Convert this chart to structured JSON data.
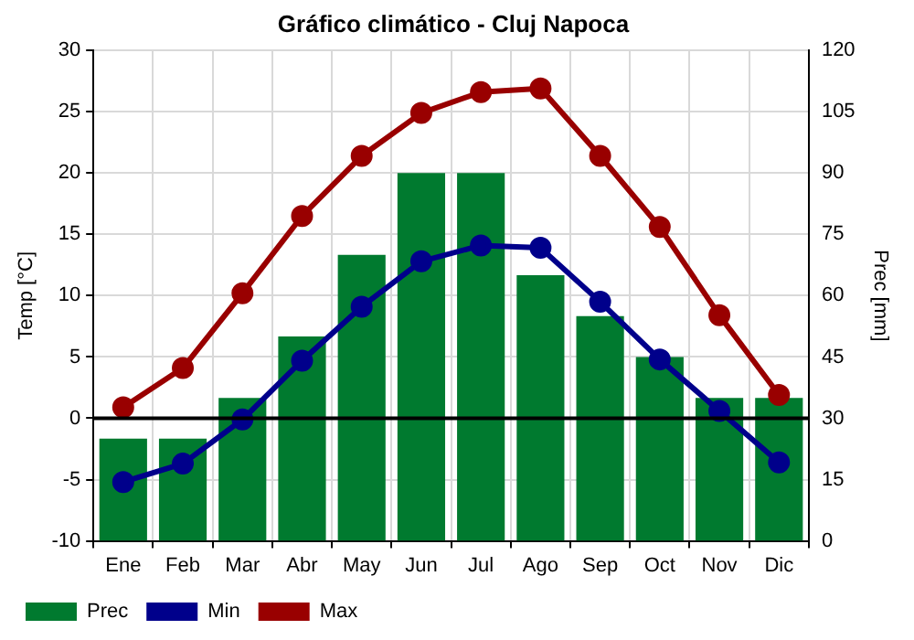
{
  "chart_data": {
    "type": "bar",
    "title": "Gráfico climático - Cluj Napoca",
    "categories": [
      "Ene",
      "Feb",
      "Mar",
      "Abr",
      "May",
      "Jun",
      "Jul",
      "Ago",
      "Sep",
      "Oct",
      "Nov",
      "Dic"
    ],
    "series": [
      {
        "name": "Prec",
        "axis": "y2",
        "color": "#007a2f",
        "values": [
          25,
          25,
          35,
          50,
          70,
          90,
          90,
          65,
          55,
          45,
          35,
          35
        ]
      },
      {
        "name": "Min",
        "type": "line",
        "color": "#00008b",
        "values": [
          -5.2,
          -3.7,
          -0.1,
          4.7,
          9.1,
          12.8,
          14.1,
          13.9,
          9.5,
          4.8,
          0.6,
          -3.6
        ]
      },
      {
        "name": "Max",
        "type": "line",
        "color": "#990000",
        "values": [
          0.9,
          4.1,
          10.2,
          16.5,
          21.4,
          24.9,
          26.6,
          26.9,
          21.4,
          15.6,
          8.4,
          1.9
        ]
      }
    ],
    "ylabel": "Temp [°C]",
    "y2label": "Prec [mm]",
    "ylim": [
      -10,
      30
    ],
    "yticks": [
      -10,
      -5,
      0,
      5,
      10,
      15,
      20,
      25,
      30
    ],
    "y2lim": [
      0,
      120
    ],
    "y2ticks": [
      0,
      15,
      30,
      45,
      60,
      75,
      90,
      105,
      120
    ],
    "ref_lines": [
      {
        "axis": "y",
        "value": 0,
        "color": "#000000"
      }
    ],
    "grid": true,
    "legend": "bottom left",
    "marker": "circle",
    "line_style": "solid"
  }
}
